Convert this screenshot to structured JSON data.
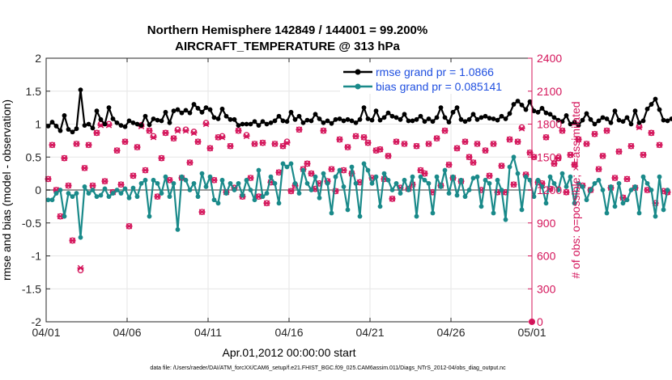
{
  "chart_data": {
    "type": "line",
    "title": "Northern Hemisphere 142849 / 144001 = 99.200%",
    "subtitle": "AIRCRAFT_TEMPERATURE @ 313 hPa",
    "xlabel": "Apr.01,2012 00:00:00 start",
    "ylabel_left": "rmse and bias (model - observation)",
    "ylabel_right": "# of obs: o=possible; ×=assimilated",
    "footnote": "data file: /Users/raeder/DAI/ATM_forcXX/CAM6_setup/f.e21.FHIST_BGC.f09_025.CAM6assim.011/Diags_NTrS_2012-04/obs_diag_output.nc",
    "xlim": [
      0,
      30
    ],
    "ylim_left": [
      -2,
      2
    ],
    "ylim_right": [
      0,
      2400
    ],
    "grid": true,
    "legend_position": "top-right",
    "xticks": [
      {
        "value": 0,
        "label": "04/01"
      },
      {
        "value": 5,
        "label": "04/06"
      },
      {
        "value": 10,
        "label": "04/11"
      },
      {
        "value": 15,
        "label": "04/16"
      },
      {
        "value": 20,
        "label": "04/21"
      },
      {
        "value": 25,
        "label": "04/26"
      },
      {
        "value": 30,
        "label": "05/01"
      }
    ],
    "yticks_left": [
      {
        "value": 2,
        "label": "2"
      },
      {
        "value": 1.5,
        "label": "1.5"
      },
      {
        "value": 1,
        "label": "1"
      },
      {
        "value": 0.5,
        "label": "0.5"
      },
      {
        "value": 0,
        "label": "0"
      },
      {
        "value": -0.5,
        "label": "-0.5"
      },
      {
        "value": -1,
        "label": "-1"
      },
      {
        "value": -1.5,
        "label": "-1.5"
      },
      {
        "value": -2,
        "label": "-2"
      }
    ],
    "yticks_right": [
      {
        "value": 2400,
        "label": "2400"
      },
      {
        "value": 2100,
        "label": "2100"
      },
      {
        "value": 1800,
        "label": "1800"
      },
      {
        "value": 1500,
        "label": "1500"
      },
      {
        "value": 1200,
        "label": "1200"
      },
      {
        "value": 900,
        "label": "900"
      },
      {
        "value": 600,
        "label": "600"
      },
      {
        "value": 300,
        "label": "300"
      },
      {
        "value": 0,
        "label": "0"
      }
    ],
    "series": [
      {
        "name": "rmse",
        "legend": "rmse grand pr = 1.0866",
        "color": "#000000",
        "axis": "left",
        "x_start": 0.125,
        "x_step": 0.25,
        "values": [
          0.97,
          1.03,
          0.97,
          0.9,
          1.13,
          0.92,
          0.88,
          0.93,
          1.52,
          0.98,
          1.0,
          0.94,
          1.2,
          1.07,
          1.0,
          1.25,
          1.08,
          1.02,
          0.98,
          0.96,
          1.05,
          1.02,
          1.0,
          0.98,
          1.12,
          0.99,
          1.08,
          1.06,
          1.05,
          1.18,
          1.02,
          1.2,
          1.22,
          1.17,
          1.21,
          1.17,
          1.3,
          1.24,
          1.18,
          1.25,
          1.22,
          1.1,
          1.08,
          1.23,
          1.12,
          1.07,
          1.07,
          0.98,
          1.0,
          1.0,
          1.0,
          1.04,
          0.98,
          1.04,
          1.0,
          1.02,
          1.05,
          1.12,
          1.05,
          1.04,
          1.18,
          1.07,
          1.12,
          1.02,
          1.06,
          1.05,
          1.15,
          1.08,
          1.02,
          1.05,
          1.01,
          1.07,
          1.08,
          1.05,
          1.07,
          1.05,
          1.02,
          1.07,
          1.25,
          1.08,
          1.06,
          1.2,
          1.06,
          1.1,
          1.17,
          1.12,
          1.1,
          1.07,
          1.15,
          1.05,
          1.05,
          1.07,
          1.12,
          1.04,
          1.08,
          1.04,
          1.1,
          1.25,
          1.1,
          1.03,
          1.18,
          1.25,
          1.07,
          1.04,
          1.07,
          1.15,
          1.07,
          1.1,
          1.12,
          1.09,
          1.08,
          1.06,
          1.12,
          1.08,
          1.16,
          1.3,
          1.35,
          1.29,
          1.22,
          1.34,
          1.2,
          1.18,
          1.24,
          1.17,
          1.15,
          1.1,
          1.06,
          1.04,
          1.13,
          1.0,
          1.03,
          0.98,
          1.06,
          1.16,
          1.07,
          1.0,
          1.05,
          1.1,
          1.08,
          1.02,
          1.2,
          1.06,
          1.04,
          1.1,
          1.0,
          1.2,
          1.02,
          1.05,
          1.23,
          1.3,
          1.38,
          1.22,
          1.06,
          1.05,
          1.08,
          1.07
        ]
      },
      {
        "name": "bias",
        "legend": "bias grand pr = 0.085141",
        "color": "#1a8a8a",
        "axis": "left",
        "x_start": 0.125,
        "x_step": 0.25,
        "values": [
          -0.15,
          -0.15,
          -0.05,
          0.0,
          -0.4,
          -0.05,
          -0.1,
          -0.05,
          -0.72,
          0.05,
          -0.05,
          0.0,
          -0.1,
          -0.08,
          0.02,
          -0.1,
          -0.05,
          0.0,
          -0.05,
          0.02,
          -0.12,
          0.03,
          -0.1,
          0.1,
          0.15,
          -0.4,
          0.15,
          0.1,
          -0.05,
          0.2,
          -0.1,
          0.1,
          -0.6,
          0.2,
          0.15,
          0.0,
          0.1,
          -0.1,
          0.25,
          0.05,
          0.2,
          -0.15,
          -0.2,
          0.15,
          -0.05,
          0.1,
          0.0,
          0.1,
          -0.08,
          0.15,
          0.0,
          -0.15,
          0.3,
          -0.1,
          -0.05,
          0.2,
          0.1,
          -0.2,
          0.4,
          0.35,
          0.4,
          0.1,
          -0.05,
          0.3,
          0.1,
          0.0,
          0.2,
          -0.12,
          0.25,
          0.1,
          -0.35,
          0.2,
          0.3,
          0.05,
          -0.3,
          0.35,
          0.1,
          -0.4,
          0.4,
          0.3,
          0.1,
          0.2,
          -0.25,
          0.25,
          0.15,
          0.0,
          0.1,
          -0.05,
          0.15,
          0.0,
          0.2,
          -0.4,
          0.2,
          0.15,
          0.1,
          -0.35,
          0.2,
          0.05,
          0.3,
          -0.05,
          0.2,
          -0.08,
          0.15,
          -0.1,
          0.0,
          0.18,
          0.2,
          -0.25,
          0.15,
          0.1,
          -0.35,
          0.15,
          0.0,
          -0.45,
          0.35,
          0.5,
          0.25,
          -0.3,
          0.2,
          0.15,
          -0.1,
          0.15,
          0.05,
          -0.2,
          0.2,
          0.1,
          0.0,
          0.25,
          0.05,
          0.2,
          -0.2,
          0.1,
          0.05,
          -0.15,
          0.0,
          0.1,
          0.15,
          0.0,
          -0.35,
          0.05,
          -0.25,
          0.1,
          -0.2,
          -0.15,
          0.0,
          0.05,
          -0.35,
          0.2,
          0.1,
          0.0,
          -0.4,
          0.2,
          -0.3,
          0.0
        ]
      },
      {
        "name": "obs_possible",
        "color": "#d4145a",
        "axis": "right",
        "marker": "o",
        "x_start": 0.125,
        "x_step": 0.25,
        "values": [
          1300,
          1610,
          1200,
          960,
          1490,
          1240,
          740,
          1620,
          470,
          1400,
          1610,
          1240,
          1720,
          1800,
          1280,
          1800,
          1180,
          1560,
          1250,
          1640,
          870,
          1330,
          1590,
          1790,
          1380,
          1740,
          1690,
          1140,
          1490,
          1720,
          1290,
          1670,
          1750,
          1310,
          1750,
          1450,
          1730,
          1640,
          1000,
          1810,
          1580,
          1290,
          1680,
          1690,
          1180,
          1600,
          1220,
          1740,
          1140,
          1700,
          1310,
          1620,
          1140,
          1630,
          1080,
          1270,
          1620,
          1360,
          1600,
          1640,
          1190,
          1240,
          1750,
          1390,
          1440,
          1350,
          1210,
          1260,
          1740,
          1280,
          1390,
          1190,
          1660,
          1380,
          1590,
          1350,
          1690,
          1270,
          1680,
          1630,
          1310,
          1560,
          1570,
          1300,
          1510,
          1120,
          1640,
          1220,
          1620,
          1210,
          1250,
          1600,
          1380,
          1350,
          1620,
          1180,
          1670,
          1240,
          1740,
          1430,
          1310,
          1580,
          1280,
          1640,
          1500,
          1450,
          1620,
          1200,
          1560,
          1330,
          1620,
          1180,
          1420,
          1180,
          1660,
          1250,
          1640,
          1770,
          1340,
          1540,
          1500,
          1270,
          1260,
          1680,
          1210,
          1440,
          1490,
          1740,
          1180,
          1520,
          1430,
          1660,
          1240,
          1620,
          1200,
          1710,
          1390,
          1510,
          1740,
          1220,
          1310,
          1550,
          1130,
          1300,
          1600,
          1220,
          1780,
          1520,
          1200,
          1720,
          1080,
          1610,
          1190,
          1180
        ]
      },
      {
        "name": "obs_assimilated",
        "color": "#d4145a",
        "axis": "right",
        "marker": "x",
        "x_start": 0.125,
        "x_step": 0.25,
        "values": [
          1300,
          1610,
          1200,
          960,
          1490,
          1240,
          740,
          1620,
          490,
          1400,
          1610,
          1240,
          1720,
          1790,
          1280,
          1790,
          1180,
          1560,
          1250,
          1640,
          870,
          1330,
          1590,
          1780,
          1380,
          1740,
          1680,
          1140,
          1490,
          1720,
          1290,
          1670,
          1740,
          1310,
          1740,
          1450,
          1720,
          1640,
          1000,
          1800,
          1580,
          1290,
          1680,
          1680,
          1180,
          1600,
          1220,
          1740,
          1140,
          1690,
          1310,
          1620,
          1140,
          1630,
          1080,
          1270,
          1620,
          1360,
          1600,
          1630,
          1190,
          1240,
          1750,
          1390,
          1440,
          1350,
          1210,
          1260,
          1740,
          1280,
          1390,
          1190,
          1660,
          1380,
          1590,
          1350,
          1690,
          1270,
          1680,
          1630,
          1310,
          1560,
          1570,
          1300,
          1510,
          1120,
          1640,
          1220,
          1620,
          1210,
          1250,
          1600,
          1380,
          1350,
          1620,
          1180,
          1670,
          1240,
          1740,
          1430,
          1310,
          1580,
          1280,
          1640,
          1500,
          1450,
          1620,
          1200,
          1560,
          1330,
          1620,
          1180,
          1420,
          1180,
          1660,
          1250,
          1640,
          1760,
          1340,
          1540,
          1500,
          1270,
          1260,
          1680,
          1210,
          1440,
          1490,
          1740,
          1180,
          1520,
          1430,
          1660,
          1240,
          1620,
          1200,
          1710,
          1390,
          1510,
          1740,
          1220,
          1310,
          1550,
          1130,
          1300,
          1600,
          1220,
          1770,
          1520,
          1200,
          1720,
          1080,
          1610,
          1190,
          1180
        ]
      }
    ],
    "zero_line": {
      "value": 0,
      "color": "#999999"
    },
    "right_axis_color": "#d4145a",
    "end_marker": {
      "x": 30,
      "y_right": 0,
      "color": "#d4145a"
    }
  }
}
